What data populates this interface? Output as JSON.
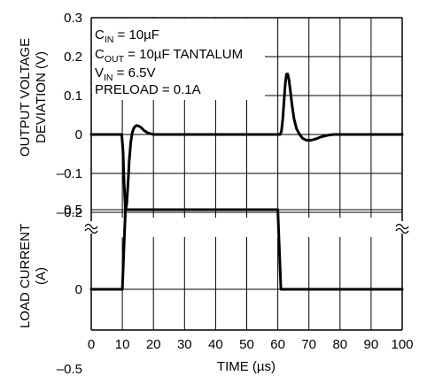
{
  "chart_data": [
    {
      "type": "line",
      "panel": "top",
      "ylabel_lines": [
        "OUTPUT VOLTAGE",
        "DEVIATION (V)"
      ],
      "ylim": [
        -0.2,
        0.3
      ],
      "yticks": [
        {
          "v": 0.3,
          "label": "0.3"
        },
        {
          "v": 0.2,
          "label": "0.2"
        },
        {
          "v": 0.1,
          "label": "0.1"
        },
        {
          "v": 0,
          "label": "0"
        },
        {
          "v": -0.1,
          "label": "–0.1"
        },
        {
          "v": -0.2,
          "label": "–0.2"
        }
      ],
      "annotations": [
        {
          "main": "C",
          "sub": "IN",
          "rest": " = 10µF"
        },
        {
          "main": "C",
          "sub": "OUT",
          "rest": " = 10µF TANTALUM"
        },
        {
          "main": "V",
          "sub": "IN",
          "rest": " = 6.5V"
        },
        {
          "main": "PRELOAD = 0.1A",
          "sub": "",
          "rest": ""
        }
      ],
      "series": [
        {
          "x": [
            0,
            9.8,
            10.2,
            10.6,
            11.0,
            11.4,
            11.8,
            12.2,
            12.7,
            13.2,
            13.8,
            14.5,
            15.2,
            16.0,
            17.0,
            18.0,
            19.0,
            20.0,
            21.0,
            22.0,
            60.8,
            61.2,
            61.6,
            62.0,
            62.4,
            62.8,
            63.2,
            63.6,
            64.0,
            64.6,
            65.2,
            66.0,
            67.0,
            68.0,
            69.0,
            70.0,
            71.0,
            72.0,
            73.0,
            74.0,
            75.0,
            76.0,
            77.0,
            78.0,
            100
          ],
          "values": [
            0,
            0,
            -0.04,
            -0.13,
            -0.195,
            -0.18,
            -0.13,
            -0.07,
            -0.02,
            0.005,
            0.018,
            0.023,
            0.022,
            0.018,
            0.01,
            0.005,
            0.002,
            0,
            0,
            0,
            0,
            0.01,
            0.04,
            0.085,
            0.13,
            0.155,
            0.155,
            0.14,
            0.115,
            0.075,
            0.04,
            0.015,
            0,
            -0.01,
            -0.014,
            -0.015,
            -0.014,
            -0.012,
            -0.009,
            -0.006,
            -0.004,
            -0.002,
            -0.001,
            0,
            0
          ]
        }
      ]
    },
    {
      "type": "line",
      "panel": "bottom",
      "ylabel_lines": [
        "LOAD CURRENT",
        "(A)"
      ],
      "ylim": [
        -0.5,
        0.5
      ],
      "yticks": [
        {
          "v": 0.5,
          "label": "0.5"
        },
        {
          "v": 0,
          "label": "0"
        },
        {
          "v": -0.5,
          "label": "–0.5"
        }
      ],
      "xlabel": "TIME (µs)",
      "xlim": [
        0,
        100
      ],
      "xticks": [
        "0",
        "10",
        "20",
        "30",
        "40",
        "50",
        "60",
        "70",
        "80",
        "90",
        "100"
      ],
      "series": [
        {
          "x": [
            0,
            10,
            11,
            60,
            61,
            100
          ],
          "values": [
            0,
            0,
            0.5,
            0.5,
            0,
            0
          ]
        }
      ]
    }
  ]
}
